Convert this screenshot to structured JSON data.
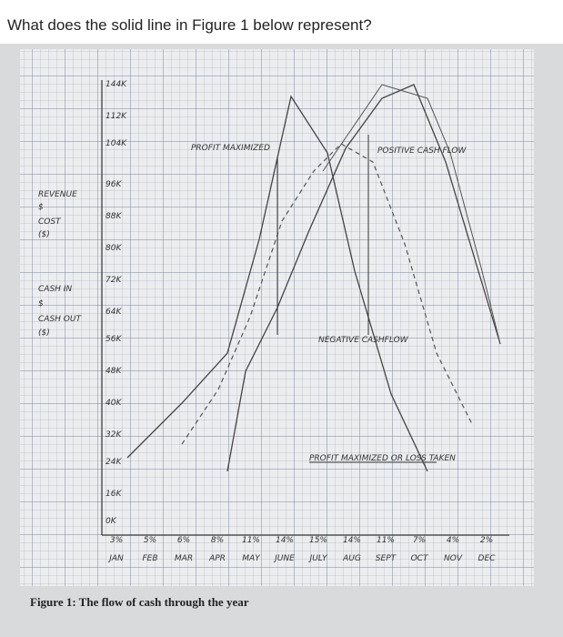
{
  "question": "What does the solid line in Figure 1 below represent?",
  "figure": {
    "caption": "Figure 1: The flow of cash through the year",
    "y_labels": [
      "144K",
      "112K",
      "104K",
      "96K",
      "88K",
      "80K",
      "72K",
      "64K",
      "56K",
      "48K",
      "40K",
      "32K",
      "24K",
      "16K",
      "0K"
    ],
    "left_labels": [
      "REVENUE",
      "$",
      "COST",
      "($)",
      "CASH IN",
      "$",
      "CASH OUT",
      "($)"
    ],
    "months": [
      "JAN",
      "FEB",
      "MAR",
      "APR",
      "MAY",
      "JUNE",
      "JULY",
      "AUG",
      "SEPT",
      "OCT",
      "NOV",
      "DEC"
    ],
    "percents": [
      "3%",
      "5%",
      "6%",
      "8%",
      "11%",
      "14%",
      "15%",
      "14%",
      "11%",
      "7%",
      "4%",
      "2%"
    ],
    "annotations": [
      "PROFIT MAXIMIZED",
      "POSITIVE CASH FLOW",
      "NEGATIVE CASHFLOW",
      "PROFIT MAXIMIZED OR LOSS TAKEN"
    ]
  }
}
